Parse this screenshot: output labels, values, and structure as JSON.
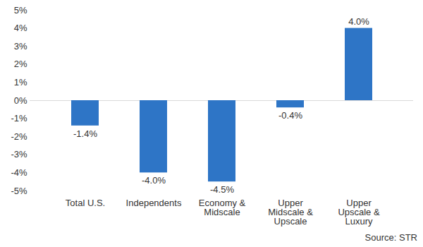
{
  "chart_data": {
    "type": "bar",
    "categories": [
      "Total U.S.",
      "Independents",
      "Economy & Midscale",
      "Upper Midscale & Upscale",
      "Upper Upscale & Luxury"
    ],
    "values": [
      -1.4,
      -4.0,
      -4.5,
      -0.4,
      4.0
    ],
    "value_labels": [
      "-1.4%",
      "-4.0%",
      "-4.5%",
      "-0.4%",
      "4.0%"
    ],
    "data_labels": true,
    "color": "#2e75c6",
    "ylim": [
      -5,
      5
    ],
    "yticks": [
      {
        "value": 5,
        "label": "5%"
      },
      {
        "value": 4,
        "label": "4%"
      },
      {
        "value": 3,
        "label": "3%"
      },
      {
        "value": 2,
        "label": "2%"
      },
      {
        "value": 1,
        "label": "1%"
      },
      {
        "value": 0,
        "label": "0%"
      },
      {
        "value": -1,
        "label": "-1%"
      },
      {
        "value": -2,
        "label": "-2%"
      },
      {
        "value": -3,
        "label": "-3%"
      },
      {
        "value": -4,
        "label": "-4%"
      },
      {
        "value": -5,
        "label": "-5%"
      }
    ],
    "grid": false,
    "caption": "Source: STR"
  }
}
